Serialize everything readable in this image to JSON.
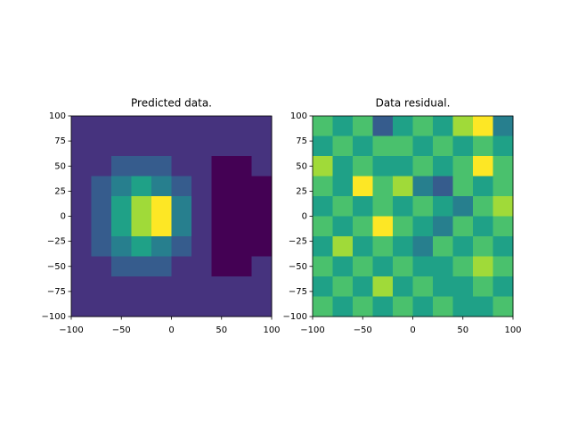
{
  "chart_data": [
    {
      "type": "contour",
      "title": "Predicted data.",
      "x": [
        -90,
        -70,
        -50,
        -30,
        -10,
        10,
        30,
        50,
        70,
        90
      ],
      "y": [
        90,
        70,
        50,
        30,
        10,
        -10,
        -30,
        -50,
        -70,
        -90
      ],
      "z": [
        [
          0.5,
          0.5,
          0.5,
          0.5,
          0.5,
          0.5,
          0.5,
          0.5,
          0.5,
          0.5
        ],
        [
          0.5,
          0.5,
          0.5,
          0.5,
          0.5,
          0.5,
          0.5,
          0.5,
          0.5,
          0.5
        ],
        [
          0.5,
          0.5,
          1.2,
          1.3,
          1.2,
          0.5,
          0.5,
          -0.5,
          -0.5,
          0.5
        ],
        [
          0.5,
          1.2,
          2.3,
          3.2,
          2.5,
          1.3,
          0.5,
          -0.5,
          -0.5,
          -0.5
        ],
        [
          0.5,
          1.3,
          3.0,
          5.5,
          6.8,
          2.4,
          0.5,
          -0.5,
          -0.5,
          -0.5
        ],
        [
          0.5,
          1.3,
          3.0,
          5.5,
          6.5,
          2.4,
          0.5,
          -0.5,
          -0.5,
          -0.5
        ],
        [
          0.5,
          1.2,
          2.2,
          3.1,
          2.6,
          1.3,
          0.5,
          -0.5,
          -0.5,
          -0.5
        ],
        [
          0.5,
          0.5,
          1.2,
          1.3,
          1.2,
          0.5,
          0.5,
          -0.5,
          -0.5,
          0.5
        ],
        [
          0.5,
          0.5,
          0.5,
          0.5,
          0.5,
          0.5,
          0.5,
          0.5,
          0.5,
          0.5
        ],
        [
          0.5,
          0.5,
          0.5,
          0.5,
          0.5,
          0.5,
          0.5,
          0.5,
          0.5,
          0.5
        ]
      ],
      "levels": [
        -1,
        0,
        1,
        2,
        3,
        4,
        5,
        6,
        7
      ],
      "colors": [
        "#440154",
        "#46337e",
        "#365c8d",
        "#277f8e",
        "#1fa187",
        "#4ac16d",
        "#a0da39",
        "#fde725"
      ],
      "xlim": [
        -100,
        100
      ],
      "ylim": [
        -100,
        100
      ],
      "xticks": [
        {
          "value": -100,
          "label": "−100"
        },
        {
          "value": -50,
          "label": "−50"
        },
        0,
        50,
        100
      ],
      "yticks": [
        {
          "value": -100,
          "label": "−100"
        },
        {
          "value": -75,
          "label": "−75"
        },
        {
          "value": -50,
          "label": "−50"
        },
        {
          "value": -25,
          "label": "−25"
        },
        0,
        25,
        50,
        75,
        100
      ]
    },
    {
      "type": "contour",
      "title": "Data residual.",
      "x": [
        -90,
        -70,
        -50,
        -30,
        -10,
        10,
        30,
        50,
        70,
        90
      ],
      "y": [
        90,
        70,
        50,
        30,
        10,
        -10,
        -30,
        -50,
        -70,
        -90
      ],
      "z": [
        [
          4,
          3,
          4.5,
          1.5,
          3,
          4,
          3.5,
          5,
          6.5,
          2.5
        ],
        [
          3,
          4,
          3.5,
          4,
          4.5,
          3,
          4,
          3.5,
          4,
          3
        ],
        [
          5,
          3,
          4,
          3,
          3.5,
          4,
          3,
          4.5,
          6.8,
          4
        ],
        [
          4,
          3.5,
          6.5,
          4,
          5.5,
          2.5,
          1.2,
          4,
          3.5,
          4.5
        ],
        [
          3.5,
          4,
          3,
          4.5,
          3,
          4,
          3.5,
          2.5,
          4,
          5
        ],
        [
          4.5,
          3,
          4,
          6.9,
          4,
          3.5,
          2,
          4,
          3,
          4
        ],
        [
          3,
          5,
          3.5,
          4,
          3,
          2.5,
          4,
          3.5,
          4.5,
          3.5
        ],
        [
          4,
          3.5,
          4,
          3,
          4.5,
          3.5,
          3,
          4,
          5,
          4
        ],
        [
          3.5,
          4,
          3,
          5.5,
          3,
          4.5,
          3.5,
          3,
          4,
          3.5
        ],
        [
          4,
          3,
          4.5,
          3.5,
          4,
          3,
          4,
          3.5,
          3,
          4.5
        ]
      ],
      "levels": [
        -1,
        0,
        1,
        2,
        3,
        4,
        5,
        6,
        7
      ],
      "colors": [
        "#440154",
        "#46337e",
        "#365c8d",
        "#277f8e",
        "#1fa187",
        "#4ac16d",
        "#a0da39",
        "#fde725"
      ],
      "xlim": [
        -100,
        100
      ],
      "ylim": [
        -100,
        100
      ],
      "xticks": [
        {
          "value": -100,
          "label": "−100"
        },
        {
          "value": -50,
          "label": "−50"
        },
        0,
        50,
        100
      ],
      "yticks": [
        {
          "value": -100,
          "label": "−100"
        },
        {
          "value": -75,
          "label": "−75"
        },
        {
          "value": -50,
          "label": "−50"
        },
        {
          "value": -25,
          "label": "−25"
        },
        0,
        25,
        50,
        75,
        100
      ]
    }
  ]
}
